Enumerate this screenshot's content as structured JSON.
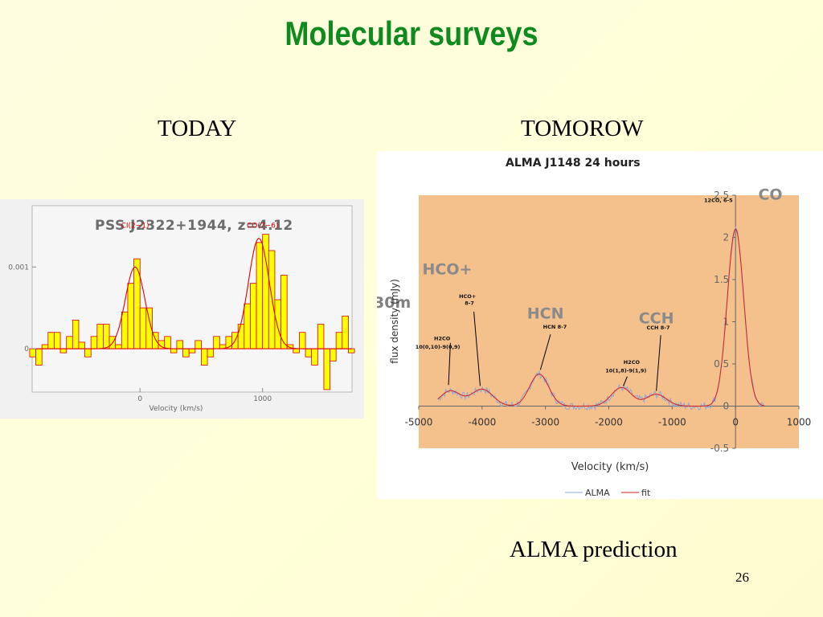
{
  "slide": {
    "title": "Molecular surveys",
    "left_heading": "TODAY",
    "right_heading": "TOMOROW",
    "caption": "ALMA prediction",
    "page_number": "26"
  },
  "colors": {
    "title": "#0f8a1e",
    "left_fill": "#ffff00",
    "left_line": "#e00000",
    "right_plot_bg": "#f4c08c",
    "alma_line": "#8fa6d8",
    "fit_line": "#d22020"
  },
  "chart_data": [
    {
      "type": "bar",
      "title": "PSS J2322+1944, z=4.12",
      "xlabel": "Velocity (km/s)",
      "ylabel": "",
      "xlim": [
        -880,
        1730
      ],
      "ylim": [
        -0.00053,
        0.00175
      ],
      "x_ticks": [
        "0",
        "1000"
      ],
      "x_tick_values": [
        0,
        1000
      ],
      "y_ticks": [
        "0",
        "0.001"
      ],
      "y_tick_values": [
        0,
        0.001
      ],
      "annotations": [
        {
          "text": "CI(2−1)",
          "x": -40,
          "y": 0.00148
        },
        {
          "text": "CO(7−6)",
          "x": 1000,
          "y": 0.00148
        }
      ],
      "bin_width": 50,
      "bins_x": [
        -875,
        -825,
        -775,
        -725,
        -675,
        -625,
        -575,
        -525,
        -475,
        -425,
        -375,
        -325,
        -275,
        -225,
        -175,
        -125,
        -75,
        -25,
        25,
        75,
        125,
        175,
        225,
        275,
        325,
        375,
        425,
        475,
        525,
        575,
        625,
        675,
        725,
        775,
        825,
        875,
        925,
        975,
        1025,
        1075,
        1125,
        1175,
        1225,
        1275,
        1325,
        1375,
        1425,
        1475,
        1525,
        1575,
        1625,
        1675,
        1725
      ],
      "values": [
        -0.0001,
        -0.0002,
        5e-05,
        0.0002,
        0.0002,
        -5e-05,
        0.00015,
        0.00035,
        8e-05,
        -0.0001,
        0.00015,
        0.0003,
        0.0003,
        0.00015,
        5e-05,
        0.00045,
        0.0008,
        0.0011,
        0.0005,
        0.0005,
        0.0002,
        0.0001,
        0.00015,
        -5e-05,
        0.0001,
        -0.0001,
        -5e-05,
        0.0001,
        -0.0002,
        -0.0001,
        0.00015,
        5e-05,
        0.00015,
        0.0002,
        0.0003,
        0.00055,
        0.0008,
        0.0013,
        0.0014,
        0.0012,
        0.0006,
        0.0009,
        5e-05,
        -5e-05,
        0.0002,
        -0.0001,
        -0.0002,
        0.0003,
        -0.0005,
        -0.00015,
        0.0002,
        0.0004,
        -5e-05
      ],
      "fit": {
        "peaks": [
          {
            "x": -40,
            "amp": 0.001,
            "sigma": 80
          },
          {
            "x": 970,
            "amp": 0.00135,
            "sigma": 85
          }
        ]
      }
    },
    {
      "type": "line",
      "title": "ALMA J1148 24 hours",
      "xlabel": "Velocity (km/s)",
      "ylabel": "flux density (mJy)",
      "xlim": [
        -5000,
        1000
      ],
      "ylim": [
        -0.5,
        2.5
      ],
      "x_ticks": [
        "-5000",
        "-4000",
        "-3000",
        "-2000",
        "-1000",
        "0",
        "1000"
      ],
      "x_tick_values": [
        -5000,
        -4000,
        -3000,
        -2000,
        -1000,
        0,
        1000
      ],
      "y_ticks": [
        "-0.5",
        "0",
        "0.5",
        "1",
        "1.5",
        "2",
        "2.5"
      ],
      "y_tick_values": [
        -0.5,
        0,
        0.5,
        1,
        1.5,
        2,
        2.5
      ],
      "series": [
        {
          "name": "ALMA",
          "color": "#8fa6d8"
        },
        {
          "name": "fit",
          "color": "#d22020"
        }
      ],
      "fit_peaks": [
        {
          "x": -4500,
          "amp": 0.18,
          "sigma": 160
        },
        {
          "x": -4000,
          "amp": 0.2,
          "sigma": 170
        },
        {
          "x": -3100,
          "amp": 0.38,
          "sigma": 150
        },
        {
          "x": -1800,
          "amp": 0.22,
          "sigma": 160
        },
        {
          "x": -1250,
          "amp": 0.14,
          "sigma": 160
        },
        {
          "x": 0,
          "amp": 2.1,
          "sigma": 130
        }
      ],
      "small_labels": [
        {
          "text": "12CO, 6-5",
          "x": -270,
          "y": 2.42
        },
        {
          "text": "HCO+",
          "x": -4230,
          "y": 1.28
        },
        {
          "text": "8-7",
          "x": -4200,
          "y": 1.2
        },
        {
          "text": "HCN 8-7",
          "x": -2850,
          "y": 0.92
        },
        {
          "text": "CCH 8-7",
          "x": -1220,
          "y": 0.91
        },
        {
          "text": "H2CO",
          "x": -4630,
          "y": 0.78
        },
        {
          "text": "10(0,10)-9(0,9)",
          "x": -4700,
          "y": 0.68
        },
        {
          "text": "H2CO",
          "x": -1640,
          "y": 0.5
        },
        {
          "text": "10(1,8)-9(1,9)",
          "x": -1730,
          "y": 0.4
        }
      ],
      "big_labels": [
        {
          "text": "CO",
          "x": 550,
          "y": 2.45
        },
        {
          "text": "HCO+",
          "x": -4550,
          "y": 1.56
        },
        {
          "text": "HCN",
          "x": -3000,
          "y": 1.04
        },
        {
          "text": "CCH",
          "x": -1250,
          "y": 0.98
        }
      ],
      "overlay_text": "30m"
    }
  ]
}
